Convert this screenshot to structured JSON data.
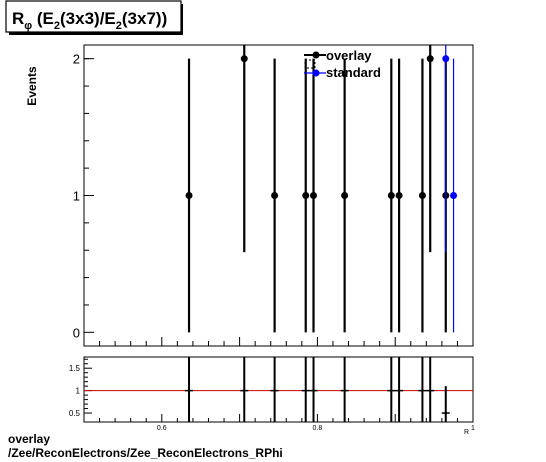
{
  "chart_data": [
    {
      "type": "scatter",
      "title": "Rφ (E2(3x3)/E2(3x7))",
      "title_parts": {
        "r": "R",
        "phi": "φ",
        "open": " (E",
        "sub1": "2",
        "mid": "(3x3)/E",
        "sub2": "2",
        "close": "(3x7))"
      },
      "ylabel": "Events",
      "xlabel": "",
      "xlim": [
        0.5,
        1.0
      ],
      "ylim": [
        -0.1,
        2.1
      ],
      "y_ticks": [
        0,
        1,
        2
      ],
      "y_tick_labels": [
        "0",
        "1",
        "2"
      ],
      "legend": {
        "placement": "top-right",
        "entries": [
          "overlay",
          "standard"
        ]
      },
      "series": [
        {
          "name": "overlay",
          "color": "#000000",
          "points": [
            {
              "x": 0.635,
              "y": 1,
              "err": 1
            },
            {
              "x": 0.706,
              "y": 2,
              "err": 1.414
            },
            {
              "x": 0.745,
              "y": 1,
              "err": 1
            },
            {
              "x": 0.785,
              "y": 1,
              "err": 1
            },
            {
              "x": 0.795,
              "y": 1,
              "err": 1
            },
            {
              "x": 0.835,
              "y": 1,
              "err": 1
            },
            {
              "x": 0.895,
              "y": 1,
              "err": 1
            },
            {
              "x": 0.905,
              "y": 1,
              "err": 1
            },
            {
              "x": 0.935,
              "y": 1,
              "err": 1
            },
            {
              "x": 0.945,
              "y": 2,
              "err": 1.414
            },
            {
              "x": 0.965,
              "y": 1,
              "err": 1
            }
          ]
        },
        {
          "name": "standard",
          "color": "#0000ff",
          "points": [
            {
              "x": 0.965,
              "y": 2,
              "err": 1.414
            },
            {
              "x": 0.975,
              "y": 1,
              "err": 1
            }
          ]
        }
      ]
    },
    {
      "type": "scatter",
      "title": "",
      "xlabel": "",
      "ylabel": "",
      "xlim": [
        0.5,
        1.0
      ],
      "ylim": [
        0.3,
        1.75
      ],
      "x_ticks": [
        0.6,
        0.8,
        1.0
      ],
      "x_tick_labels": [
        "0.6",
        "0.8",
        "1"
      ],
      "y_ticks": [
        0.5,
        1.0,
        1.5
      ],
      "y_tick_labels": [
        "0.5",
        "1",
        "1.5"
      ],
      "reference_line": {
        "y": 1,
        "color": "#cc0000"
      },
      "points": [
        {
          "x": 0.635,
          "y": 1,
          "err": 1
        },
        {
          "x": 0.706,
          "y": 1,
          "err": 1
        },
        {
          "x": 0.745,
          "y": 1,
          "err": 1
        },
        {
          "x": 0.785,
          "y": 1,
          "err": 1
        },
        {
          "x": 0.795,
          "y": 1,
          "err": 1
        },
        {
          "x": 0.835,
          "y": 1,
          "err": 1
        },
        {
          "x": 0.895,
          "y": 1,
          "err": 1
        },
        {
          "x": 0.905,
          "y": 1,
          "err": 1
        },
        {
          "x": 0.935,
          "y": 1,
          "err": 1
        },
        {
          "x": 0.945,
          "y": 1,
          "err": 1
        },
        {
          "x": 0.965,
          "y": 0.5,
          "err": 0.6
        }
      ],
      "x_corner_label": "R"
    }
  ],
  "footer": {
    "line1": "overlay",
    "line2": "/Zee/ReconElectrons/Zee_ReconElectrons_RPhi"
  }
}
